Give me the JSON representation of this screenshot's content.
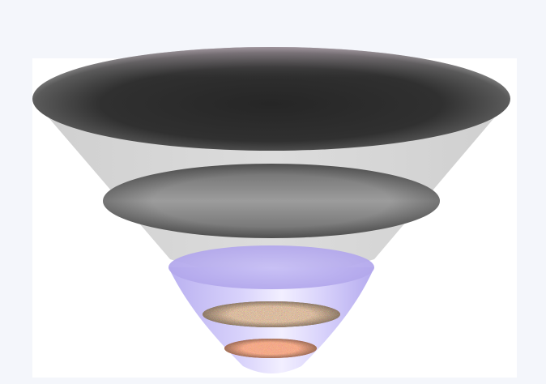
{
  "diagram": {
    "type": "funnel",
    "layer_count": 4,
    "colors": {
      "background": "#f4f6fb",
      "panel": "#ffffff",
      "outer_cone": "#d6d6d6",
      "top_disc_dark": "#2b2b2b",
      "mid_disc": "#7a7a7a",
      "inner_cone": "#c9c2f3",
      "band_red": "#d8462c",
      "band_textured": "#7a5a3c"
    },
    "layers": [
      {
        "name": "top-disc",
        "shading": "dark-gray"
      },
      {
        "name": "middle-disc",
        "shading": "medium-gray"
      },
      {
        "name": "textured-band",
        "shading": "noise-brown-green"
      },
      {
        "name": "bottom-band",
        "shading": "noise-orange-red"
      }
    ]
  }
}
